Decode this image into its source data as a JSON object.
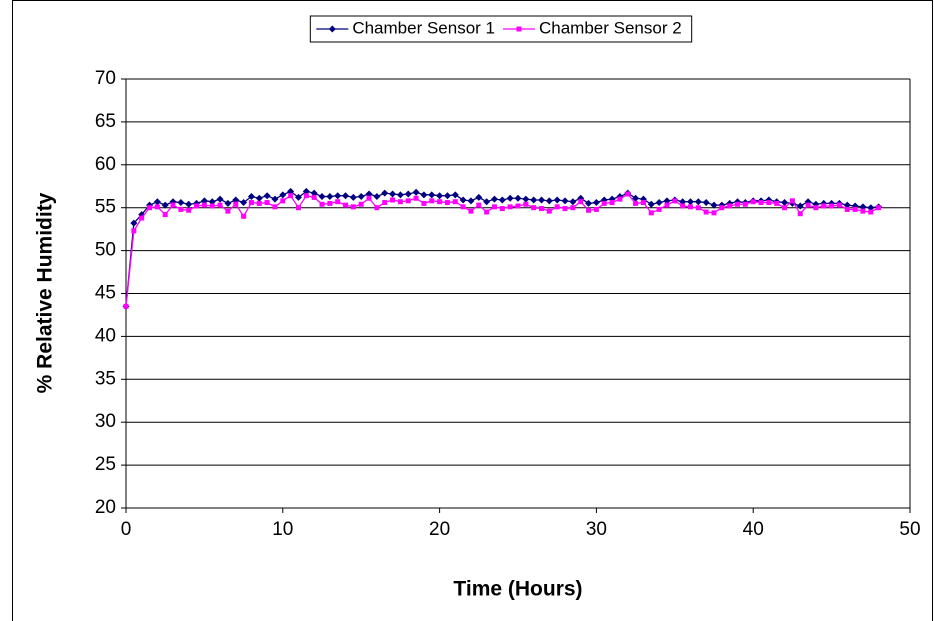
{
  "chart_data": {
    "type": "line",
    "x_label": "Time (Hours)",
    "y_label": "% Relative Humidity",
    "xlim": [
      0,
      50
    ],
    "xticks": [
      0,
      10,
      20,
      30,
      40,
      50
    ],
    "ylim": [
      20,
      70
    ],
    "yticks": [
      20,
      25,
      30,
      35,
      40,
      45,
      50,
      55,
      60,
      65,
      70
    ],
    "grid": true,
    "legend": "top",
    "x": [
      0,
      0.5,
      1,
      1.5,
      2,
      2.5,
      3,
      3.5,
      4,
      4.5,
      5,
      5.5,
      6,
      6.5,
      7,
      7.5,
      8,
      8.5,
      9,
      9.5,
      10,
      10.5,
      11,
      11.5,
      12,
      12.5,
      13,
      13.5,
      14,
      14.5,
      15,
      15.5,
      16,
      16.5,
      17,
      17.5,
      18,
      18.5,
      19,
      19.5,
      20,
      20.5,
      21,
      21.5,
      22,
      22.5,
      23,
      23.5,
      24,
      24.5,
      25,
      25.5,
      26,
      26.5,
      27,
      27.5,
      28,
      28.5,
      29,
      29.5,
      30,
      30.5,
      31,
      31.5,
      32,
      32.5,
      33,
      33.5,
      34,
      34.5,
      35,
      35.5,
      36,
      36.5,
      37,
      37.5,
      38,
      38.5,
      39,
      39.5,
      40,
      40.5,
      41,
      41.5,
      42,
      42.5,
      43,
      43.5,
      44,
      44.5,
      45,
      45.5,
      46,
      46.5,
      47,
      47.5,
      48
    ],
    "series": [
      {
        "name": "Chamber Sensor 1",
        "color": "#000080",
        "marker": "diamond",
        "values": [
          43.5,
          53.2,
          54.2,
          55.3,
          55.7,
          55.3,
          55.7,
          55.6,
          55.4,
          55.5,
          55.8,
          55.7,
          56,
          55.5,
          55.9,
          55.6,
          56.3,
          56.1,
          56.4,
          56,
          56.5,
          56.9,
          56.2,
          56.9,
          56.7,
          56.3,
          56.3,
          56.4,
          56.4,
          56.2,
          56.3,
          56.6,
          56.3,
          56.7,
          56.6,
          56.5,
          56.6,
          56.8,
          56.5,
          56.5,
          56.4,
          56.4,
          56.5,
          55.9,
          55.8,
          56.2,
          55.7,
          56,
          55.9,
          56.1,
          56.1,
          56,
          55.9,
          55.9,
          55.8,
          55.9,
          55.8,
          55.7,
          56.1,
          55.5,
          55.6,
          55.9,
          56,
          56.3,
          56.7,
          56.1,
          56,
          55.4,
          55.6,
          55.8,
          55.9,
          55.7,
          55.7,
          55.7,
          55.6,
          55.3,
          55.3,
          55.5,
          55.7,
          55.6,
          55.8,
          55.8,
          55.9,
          55.7,
          55.6,
          55.5,
          55.2,
          55.7,
          55.4,
          55.5,
          55.5,
          55.5,
          55.3,
          55.2,
          55.1,
          55,
          55.1
        ]
      },
      {
        "name": "Chamber Sensor 2",
        "color": "#ff00ff",
        "marker": "square",
        "values": [
          43.5,
          52.3,
          53.8,
          55,
          55.1,
          54.2,
          55.3,
          54.8,
          54.7,
          55.2,
          55.3,
          55.2,
          55.3,
          54.6,
          55.4,
          54,
          55.6,
          55.5,
          55.6,
          55.1,
          55.8,
          56.4,
          55,
          56.4,
          56.2,
          55.4,
          55.5,
          55.7,
          55.3,
          55.1,
          55.4,
          56.1,
          55,
          55.6,
          55.9,
          55.7,
          55.8,
          56.1,
          55.5,
          55.8,
          55.7,
          55.6,
          55.7,
          55.1,
          54.6,
          55.3,
          54.5,
          55.1,
          54.9,
          55.1,
          55.2,
          55.4,
          55,
          54.9,
          54.6,
          55.1,
          54.9,
          55,
          55.7,
          54.7,
          54.8,
          55.5,
          55.6,
          56,
          56.6,
          55.5,
          55.6,
          54.4,
          54.8,
          55.3,
          55.8,
          55.2,
          55.1,
          55,
          54.5,
          54.4,
          55,
          55.2,
          55.4,
          55.4,
          55.7,
          55.6,
          55.6,
          55.5,
          55,
          55.8,
          54.3,
          55.3,
          55,
          55.2,
          55.2,
          55.3,
          54.8,
          54.8,
          54.6,
          54.5,
          55
        ]
      }
    ]
  }
}
